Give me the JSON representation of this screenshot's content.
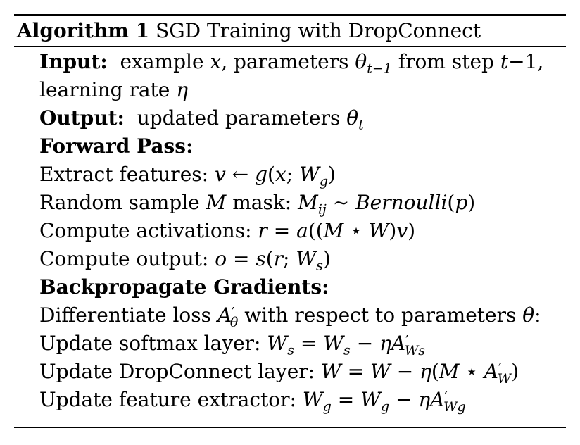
{
  "algorithm": {
    "title_label": "Algorithm 1",
    "title_text": "SGD Training with DropConnect",
    "lines": [
      {
        "kind": "labeled",
        "label": "Input:",
        "text": "example x, parameters θ_{t−1} from step t−1,"
      },
      {
        "kind": "text",
        "text": "learning rate η"
      },
      {
        "kind": "labeled",
        "label": "Output:",
        "text": "updated parameters θ_t"
      },
      {
        "kind": "heading",
        "label": "Forward Pass:"
      },
      {
        "kind": "text",
        "text": "Extract features: v ← g(x; W_g)"
      },
      {
        "kind": "text",
        "text": "Random sample M mask: M_ij ∼ Bernoulli(p)"
      },
      {
        "kind": "text",
        "text": "Compute activations: r = a((M ⋆ W)v)"
      },
      {
        "kind": "text",
        "text": "Compute output: o = s(r; W_s)"
      },
      {
        "kind": "heading",
        "label": "Backpropagate Gradients:"
      },
      {
        "kind": "text",
        "text": "Differentiate loss A′_θ with respect to parameters θ:"
      },
      {
        "kind": "text",
        "text": "Update softmax layer: W_s = W_s − ηA′_{W_s}"
      },
      {
        "kind": "text",
        "text": "Update DropConnect layer: W = W − η(M ⋆ A′_W)"
      },
      {
        "kind": "text",
        "text": "Update feature extractor: W_g = W_g − ηA′_{W_g}"
      }
    ]
  }
}
